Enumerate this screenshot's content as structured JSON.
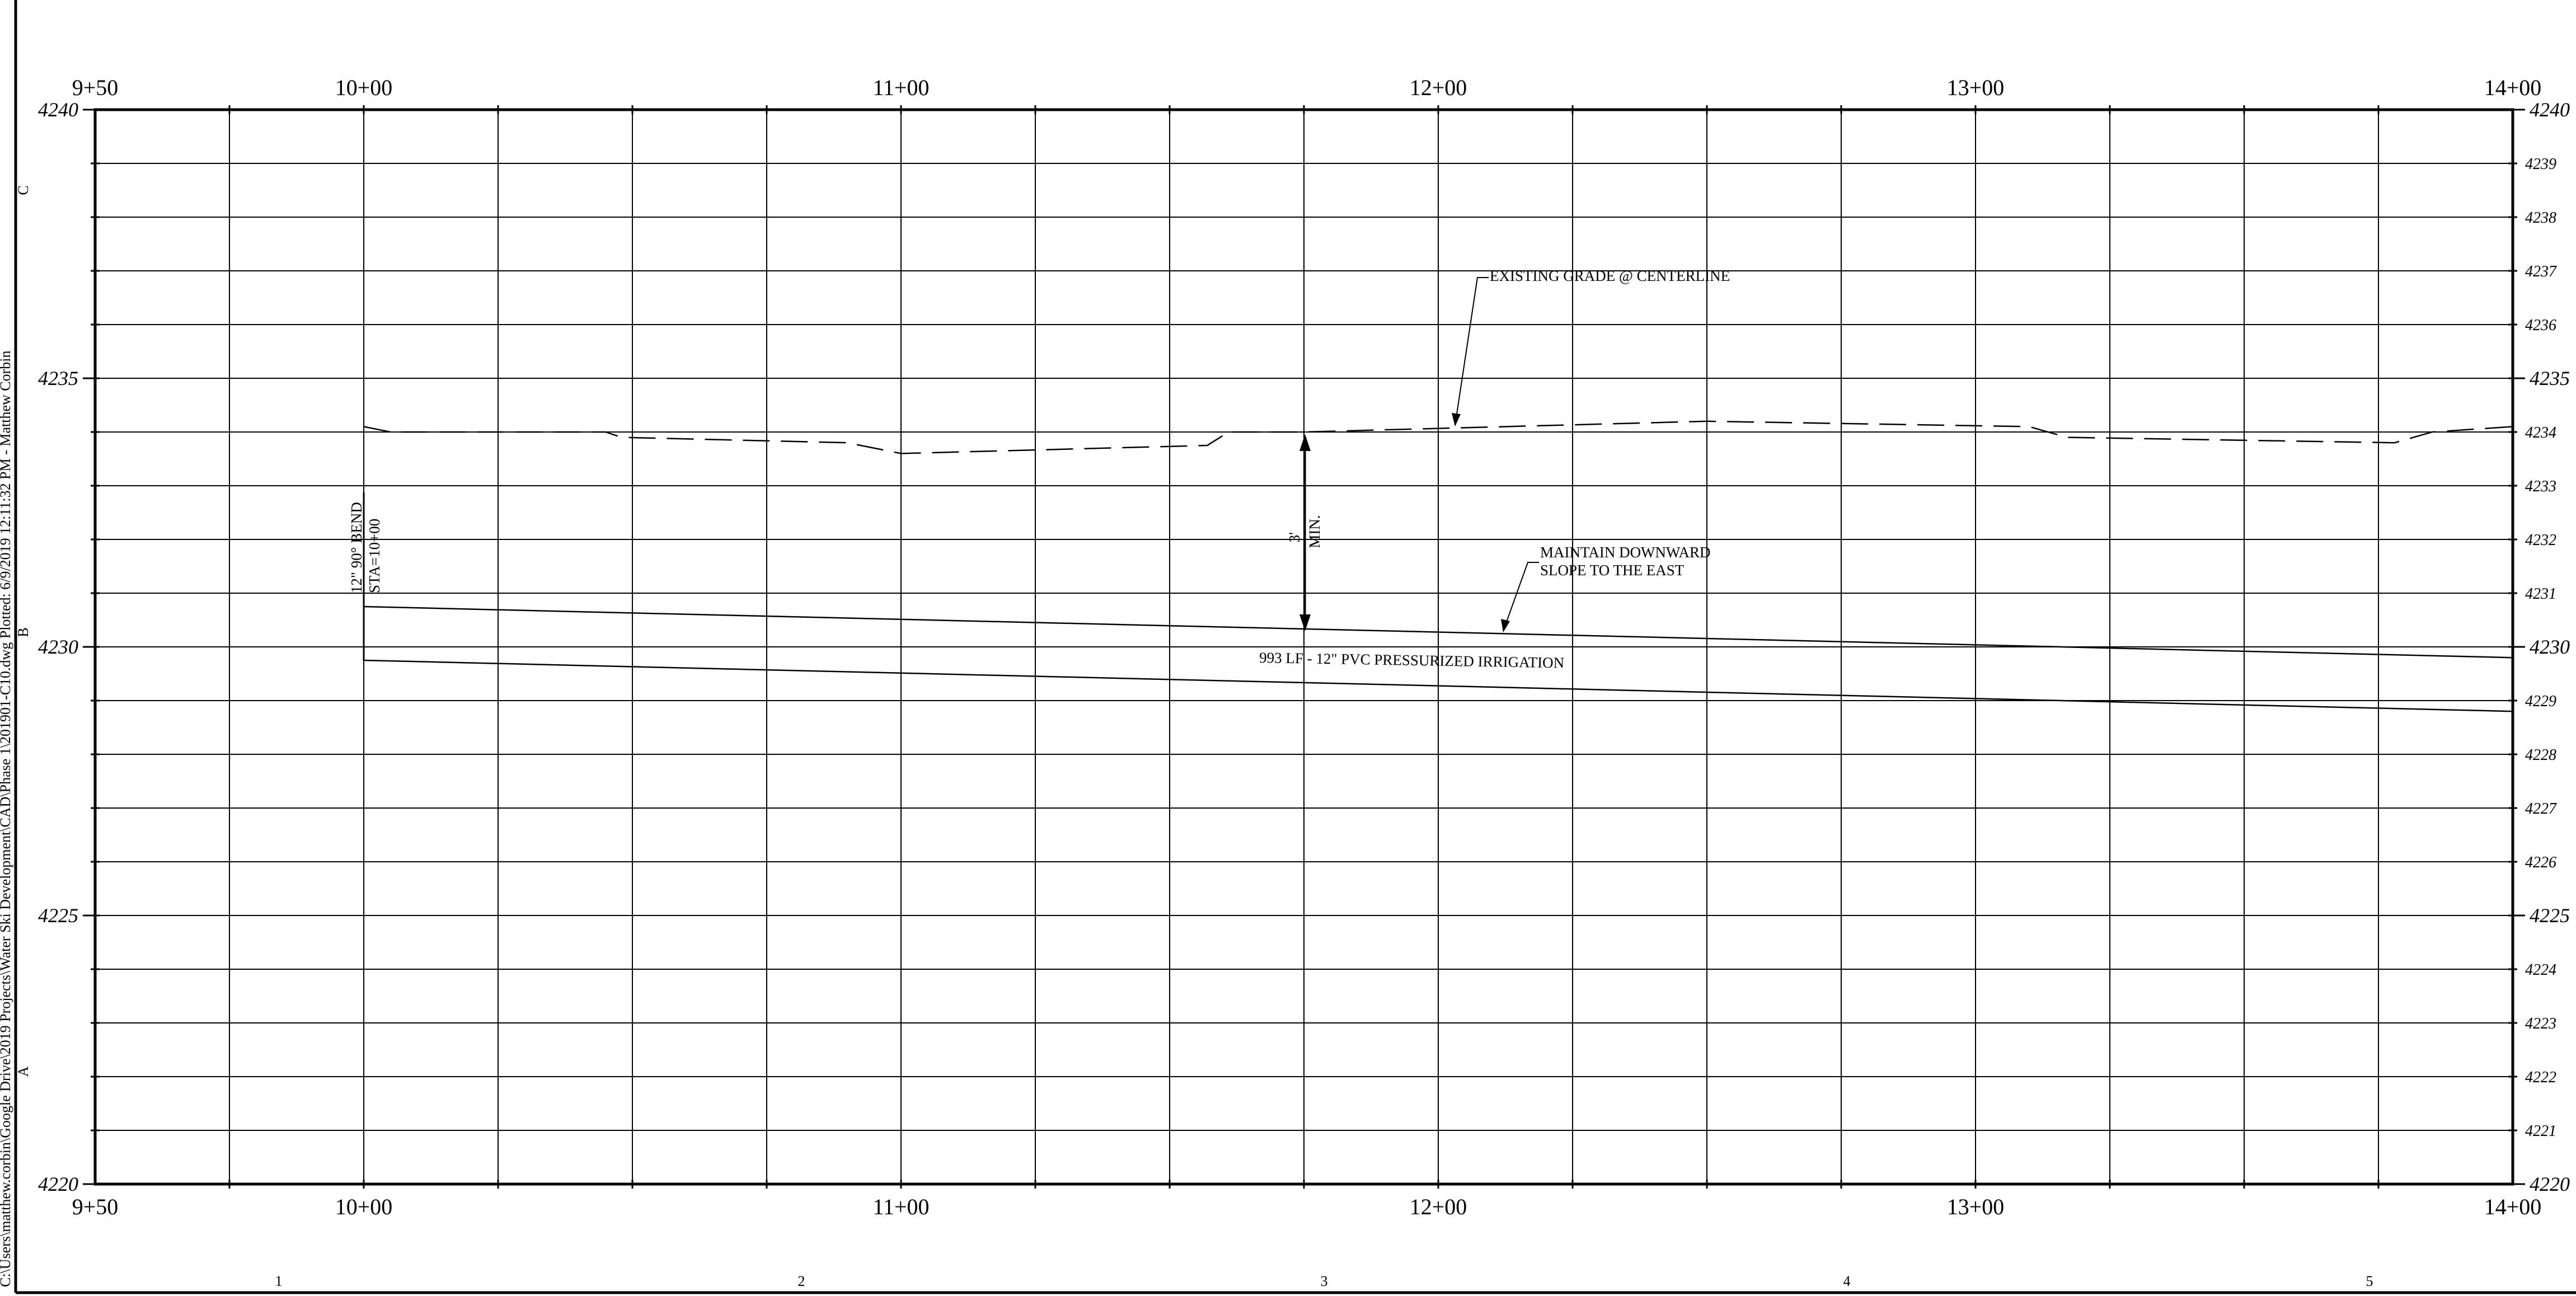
{
  "drawing": {
    "file_path_note": "C:\\Users\\matthew.corbin\\Google Drive\\2019 Projects\\Water Ski Development\\CAD\\Phase 1\\201901-C10.dwg Plotted: 6/9/2019 12:11:32 PM - Matthew Corbin",
    "border_rows": [
      "C",
      "B",
      "A"
    ],
    "border_columns": [
      "1",
      "2",
      "3",
      "4",
      "5"
    ]
  },
  "profile": {
    "stations": [
      "9+50",
      "10+00",
      "11+00",
      "12+00",
      "13+00",
      "14+00"
    ],
    "elevations_major": [
      "4240",
      "4235",
      "4230",
      "4225",
      "4220"
    ],
    "elevations_minor": [
      "4239",
      "4238",
      "4237",
      "4236",
      "4234",
      "4233",
      "4232",
      "4231",
      "4229",
      "4228",
      "4227",
      "4226",
      "4224",
      "4223",
      "4222",
      "4221"
    ],
    "existing_grade": [
      [
        1000,
        4234.1
      ],
      [
        1005,
        4234.0
      ],
      [
        1045,
        4234.0
      ],
      [
        1048,
        4233.9
      ],
      [
        1090,
        4233.8
      ],
      [
        1100,
        4233.6
      ],
      [
        1157,
        4233.75
      ],
      [
        1161,
        4234.0
      ],
      [
        1175,
        4234.0
      ],
      [
        1250,
        4234.2
      ],
      [
        1310,
        4234.1
      ],
      [
        1317,
        4233.9
      ],
      [
        1378,
        4233.8
      ],
      [
        1385,
        4234.0
      ],
      [
        1400,
        4234.1
      ]
    ],
    "pipe_top": [
      [
        1000,
        4230.75
      ],
      [
        1400,
        4229.8
      ]
    ],
    "pipe_bottom": [
      [
        1000,
        4229.75
      ],
      [
        1400,
        4228.8
      ]
    ],
    "labels": {
      "existing_grade": "EXISTING GRADE @ CENTERLINE",
      "slope_line1": "MAINTAIN DOWNWARD",
      "slope_line2": "SLOPE TO THE EAST",
      "pipe": "993 LF - 12\" PVC PRESSURIZED IRRIGATION",
      "cover_value": "3'",
      "cover_unit": "MIN.",
      "bend_line1": "12\" 90° BEND",
      "bend_line2": "STA=10+00"
    }
  }
}
